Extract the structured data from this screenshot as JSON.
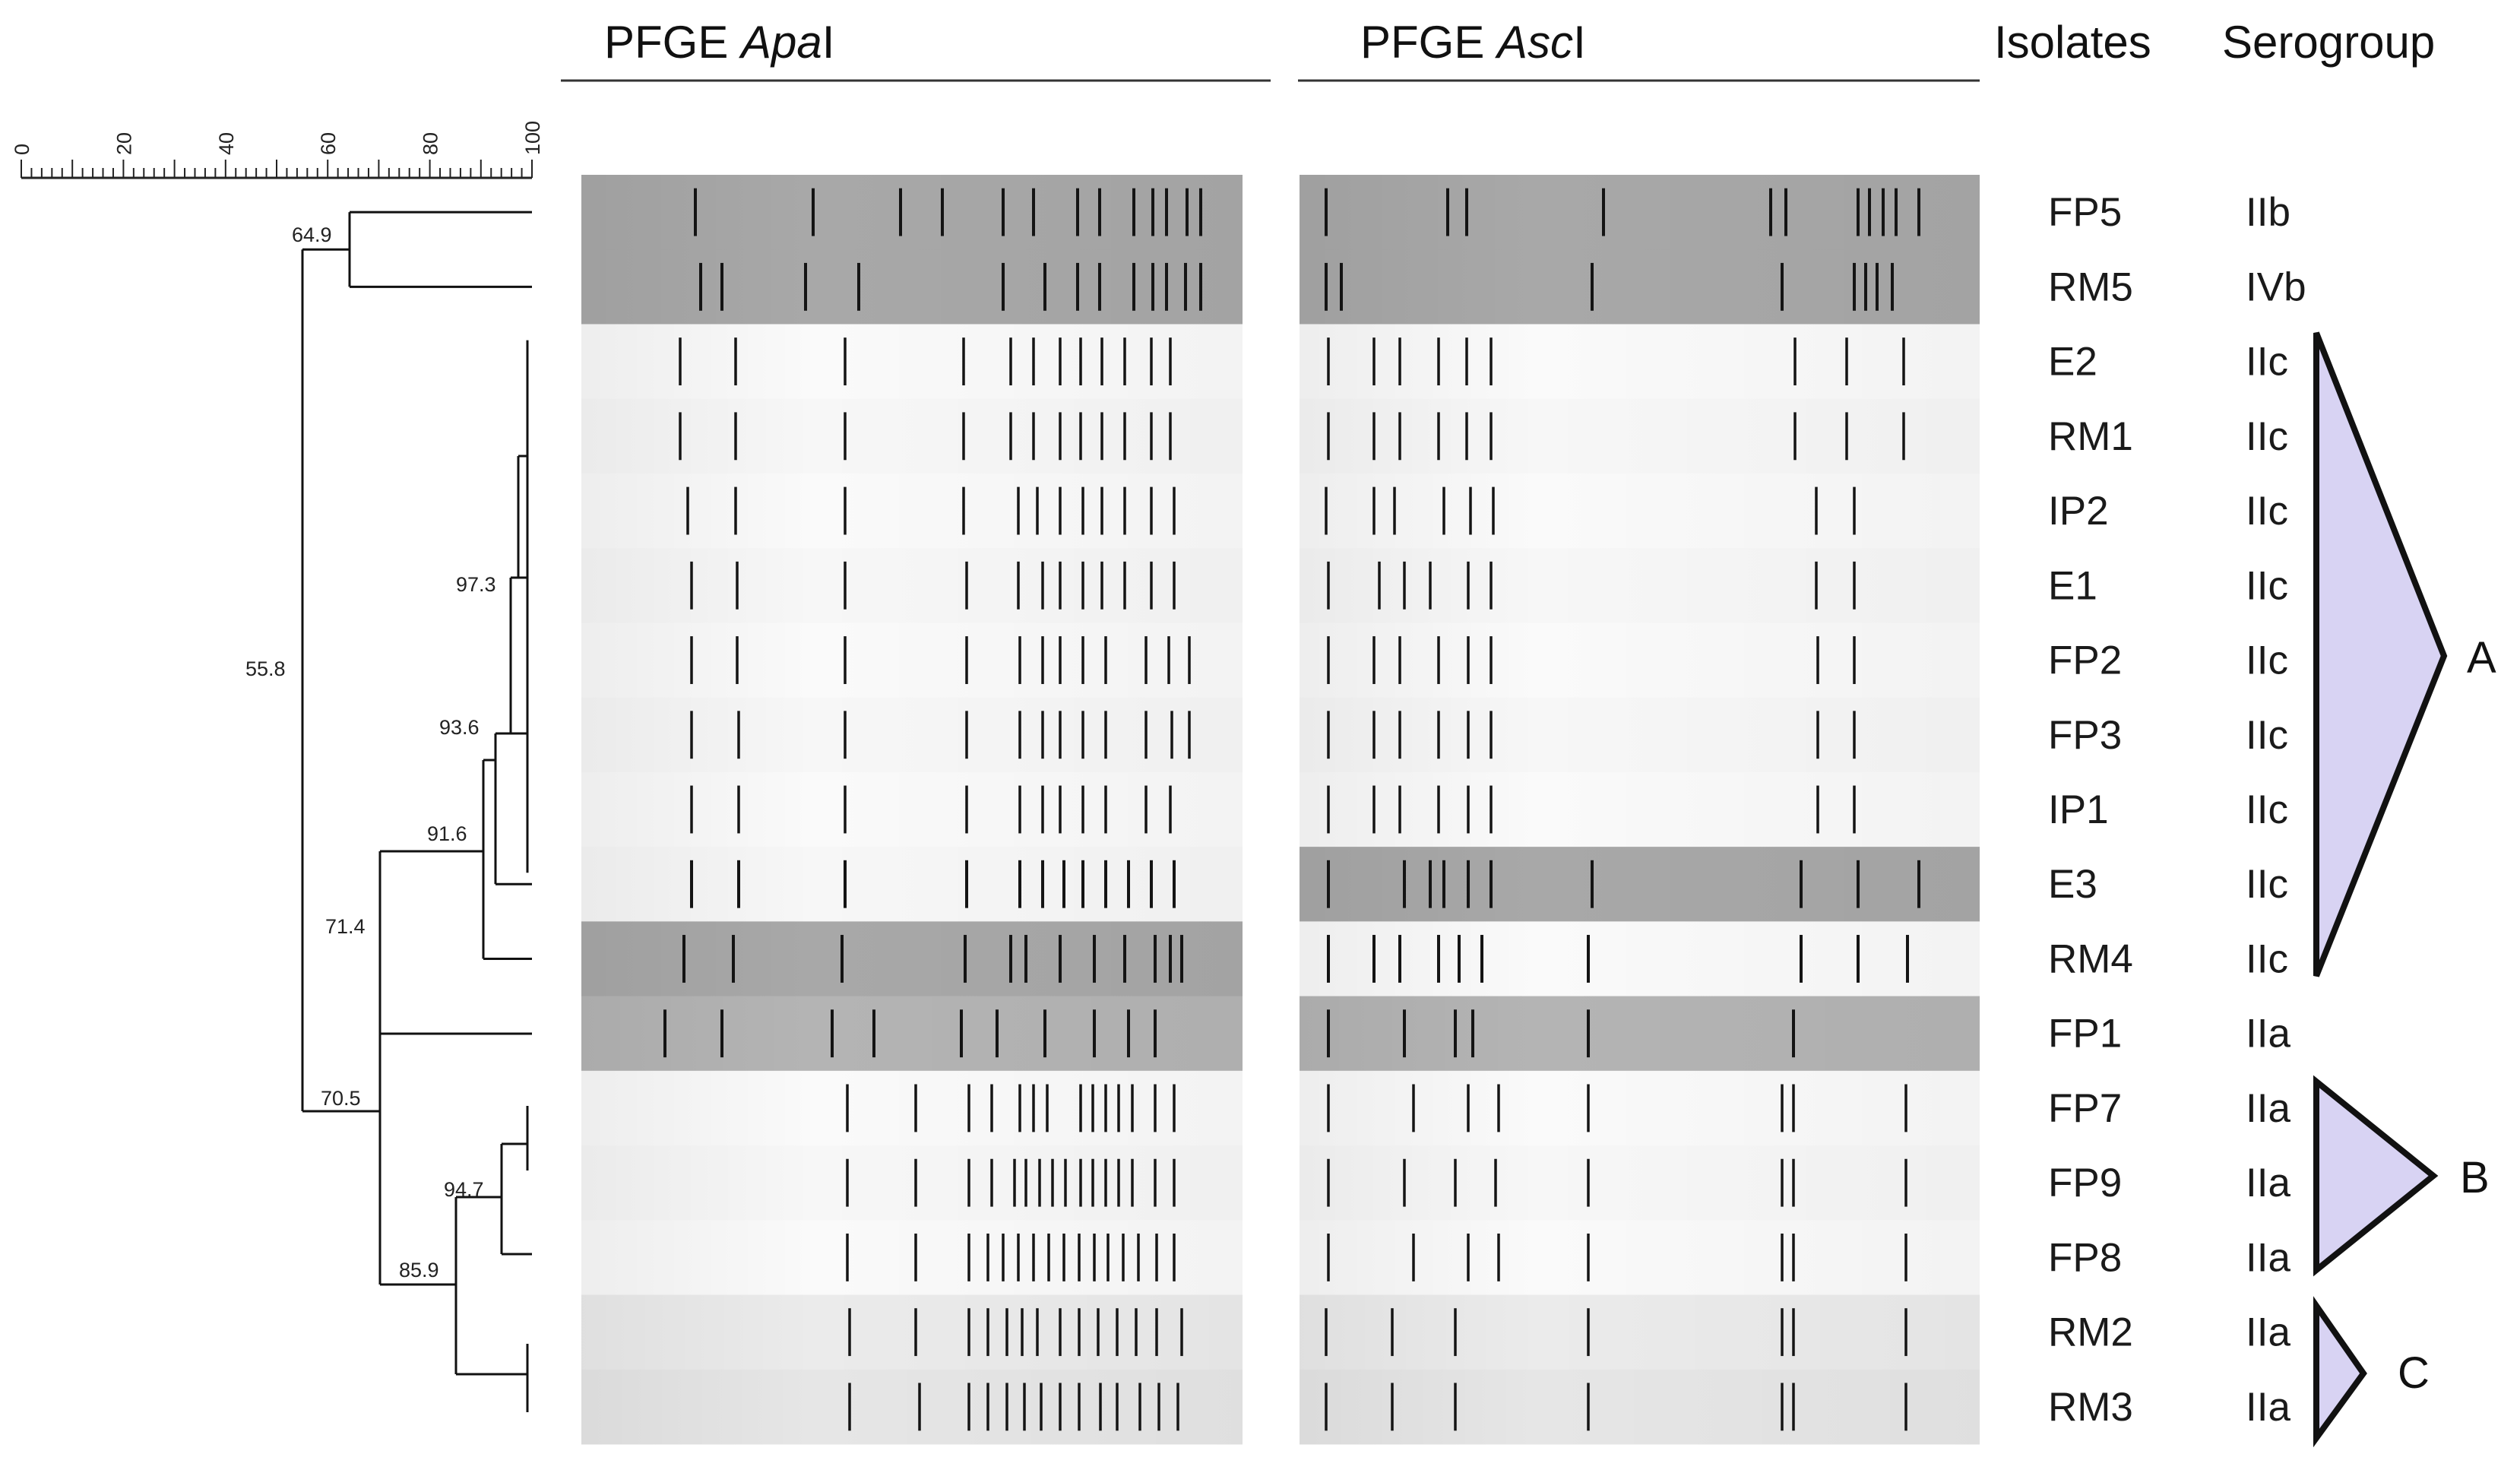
{
  "headers": {
    "apal_prefix": "PFGE ",
    "apal_italic": "Apa",
    "apal_suffix": "I",
    "ascl_prefix": "PFGE ",
    "ascl_italic": "Asc",
    "ascl_suffix": "I",
    "isolates": "Isolates",
    "serogroup": "Serogroup"
  },
  "scale": {
    "ticks": [
      "0",
      "20",
      "40",
      "60",
      "80",
      "100"
    ]
  },
  "rows": [
    {
      "isolate": "FP5",
      "serogroup": "IIb"
    },
    {
      "isolate": "RM5",
      "serogroup": "IVb"
    },
    {
      "isolate": "E2",
      "serogroup": "IIc"
    },
    {
      "isolate": "RM1",
      "serogroup": "IIc"
    },
    {
      "isolate": "IP2",
      "serogroup": "IIc"
    },
    {
      "isolate": "E1",
      "serogroup": "IIc"
    },
    {
      "isolate": "FP2",
      "serogroup": "IIc"
    },
    {
      "isolate": "FP3",
      "serogroup": "IIc"
    },
    {
      "isolate": "IP1",
      "serogroup": "IIc"
    },
    {
      "isolate": "E3",
      "serogroup": "IIc"
    },
    {
      "isolate": "RM4",
      "serogroup": "IIc"
    },
    {
      "isolate": "FP1",
      "serogroup": "IIa"
    },
    {
      "isolate": "FP7",
      "serogroup": "IIa"
    },
    {
      "isolate": "FP9",
      "serogroup": "IIa"
    },
    {
      "isolate": "FP8",
      "serogroup": "IIa"
    },
    {
      "isolate": "RM2",
      "serogroup": "IIa"
    },
    {
      "isolate": "RM3",
      "serogroup": "IIa"
    }
  ],
  "nodes": {
    "n649": "64.9",
    "n558": "55.8",
    "n973": "97.3",
    "n936": "93.6",
    "n916": "91.6",
    "n714": "71.4",
    "n705": "70.5",
    "n947": "94.7",
    "n859": "85.9"
  },
  "groups": {
    "a": "A",
    "b": "B",
    "c": "C"
  },
  "colors": {
    "group_fill": "#d8d3f3",
    "line": "#111111"
  }
}
